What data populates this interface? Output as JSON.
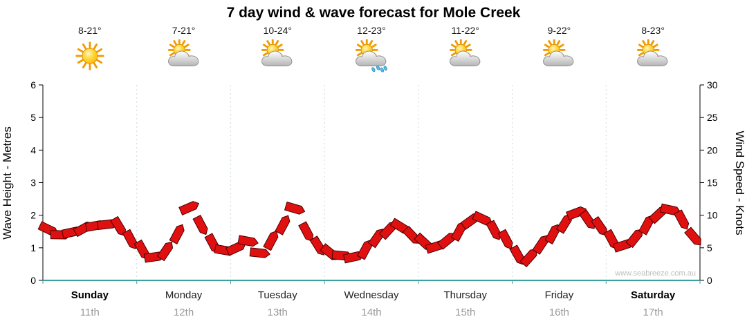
{
  "header": {
    "title": "7 day wind & wave forecast for Mole Creek"
  },
  "days": [
    {
      "name": "Sunday",
      "date": "11th",
      "temp": "8-21°",
      "icon": "sunny",
      "bold": true
    },
    {
      "name": "Monday",
      "date": "12th",
      "temp": "7-21°",
      "icon": "partly-cloudy",
      "bold": false
    },
    {
      "name": "Tuesday",
      "date": "13th",
      "temp": "10-24°",
      "icon": "partly-cloudy",
      "bold": false
    },
    {
      "name": "Wednesday",
      "date": "14th",
      "temp": "12-23°",
      "icon": "rain-showers",
      "bold": false
    },
    {
      "name": "Thursday",
      "date": "15th",
      "temp": "11-22°",
      "icon": "partly-cloudy",
      "bold": false
    },
    {
      "name": "Friday",
      "date": "16th",
      "temp": "9-22°",
      "icon": "partly-cloudy",
      "bold": false
    },
    {
      "name": "Saturday",
      "date": "17th",
      "temp": "8-23°",
      "icon": "partly-cloudy",
      "bold": true
    }
  ],
  "axes": {
    "left_title": "Wave Height - Metres",
    "left_ticks": [
      0,
      1,
      2,
      3,
      4,
      5,
      6
    ],
    "right_title": "Wind Speed - Knots",
    "right_ticks": [
      0,
      5,
      10,
      15,
      20,
      25,
      30
    ]
  },
  "watermark": "www.seabreeze.com.au",
  "colors": {
    "arrow": "#e01010",
    "arrow_outline": "#4a0000",
    "baseline": "#3aa0a0",
    "separator": "#ccd9d9",
    "sun": "#ffc800",
    "cloud": "#c8c8c8",
    "rain": "#55c0ea"
  },
  "chart_data": {
    "type": "wind-arrows",
    "title": "7 day wind & wave forecast for Mole Creek",
    "categories_days": [
      "Sunday",
      "Monday",
      "Tuesday",
      "Wednesday",
      "Thursday",
      "Friday",
      "Saturday"
    ],
    "points_per_day": 8,
    "ylabel_left": "Wave Height - Metres",
    "ylim_left": [
      0,
      6
    ],
    "ylabel_right": "Wind Speed - Knots",
    "ylim_right": [
      0,
      30
    ],
    "legend_position": "none",
    "grid": "vertical-day-separators",
    "series": [
      {
        "name": "Wind Speed",
        "units": "knots",
        "values": [
          7.8,
          7.0,
          7.4,
          8.0,
          8.4,
          8.6,
          8.2,
          6.2,
          4.6,
          3.6,
          4.6,
          7.2,
          11.2,
          8.4,
          5.6,
          4.6,
          5.0,
          6.0,
          4.2,
          6.2,
          8.6,
          11.0,
          7.4,
          5.2,
          4.2,
          3.8,
          3.6,
          4.8,
          6.6,
          7.8,
          8.2,
          6.8,
          5.8,
          5.2,
          6.2,
          7.6,
          9.2,
          9.4,
          7.6,
          6.2,
          3.8,
          3.6,
          5.6,
          7.2,
          8.8,
          10.4,
          9.2,
          8.2,
          6.2,
          5.4,
          6.6,
          8.6,
          10.2,
          10.8,
          9.2,
          6.6
        ]
      }
    ]
  }
}
